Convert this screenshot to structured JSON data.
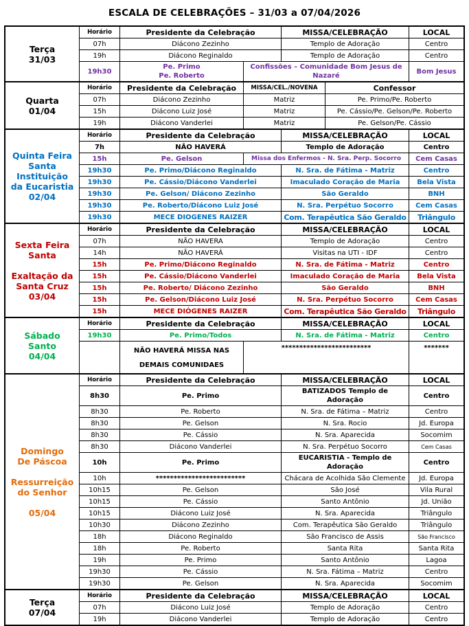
{
  "title": "ESCALA DE CELEBRAÇÕES – 31/03 a 07/04/2026",
  "colors": {
    "purple": "#7030A0",
    "blue": "#0070C0",
    "red": "#C00000",
    "green": "#00B050",
    "orange": "#E36C0A",
    "black": "#000000"
  },
  "sections": [
    {
      "day": [
        "Terça",
        "31/03"
      ],
      "header": {
        "h": "Horário",
        "p": "Presidente da Celebração",
        "m": "MISSA/CELEBRAÇÃO",
        "l": "LOCAL"
      },
      "rows": [
        {
          "h": "07h",
          "p": "Diácono Zezinho",
          "m": "Templo de Adoração",
          "l": "Centro"
        },
        {
          "h": "19h",
          "p": "Diácono Reginaldo",
          "m": "Templo de Adoração",
          "l": "Centro"
        },
        {
          "h": "19h30",
          "p": "Pe. Primo\nPe. Roberto",
          "m": "Confissões – Comunidade Bom Jesus de\nNazaré",
          "l": "Bom Jesus",
          "color": "#7030A0",
          "bold": true,
          "variant": "shift"
        }
      ]
    },
    {
      "day": [
        "Quarta",
        "01/04"
      ],
      "variant": "novena",
      "header": {
        "h": "Horário",
        "p": "Presidente da Celebração",
        "m": "MISSA/CEL./NOVENA",
        "l": "Confessor"
      },
      "rows": [
        {
          "h": "07h",
          "p": "Diácono Zezinho",
          "m": "Matriz",
          "l": "Pe. Primo/Pe. Roberto"
        },
        {
          "h": "15h",
          "p": "Diácono Luiz José",
          "m": "Matriz",
          "l": "Pe. Cássio/Pe. Gelson/Pe. Roberto"
        },
        {
          "h": "19h",
          "p": "Diácono Vanderlei",
          "m": "Matriz",
          "l": "Pe. Gelson/Pe. Cássio"
        }
      ]
    },
    {
      "day": [
        "Quinta Feira",
        "Santa",
        "Instituição",
        "da Eucaristia",
        "02/04"
      ],
      "color": "#0070C0",
      "header": {
        "h": "Horário",
        "p": "Presidente da Celebração",
        "m": "MISSA/CELEBRAÇÃO",
        "l": "LOCAL"
      },
      "rows": [
        {
          "h": "7h",
          "p": "NÃO HAVERÁ",
          "m": "Templo de Adoração",
          "l": "Centro",
          "bold": true
        },
        {
          "h": "15h",
          "p": "Pe. Gelson",
          "m": "Missa dos Enfermos - N. Sra. Perp. Socorro",
          "l": "Cem Casas",
          "color": "#7030A0",
          "bold": true,
          "variant": "shift",
          "m_small": true
        },
        {
          "h": "19h30",
          "p": "Pe. Primo/Diácono Reginaldo",
          "m": "N. Sra. de Fátima - Matriz",
          "l": "Centro",
          "color": "#0070C0",
          "bold": true
        },
        {
          "h": "19h30",
          "p": "Pe. Cássio/Diácono Vanderlei",
          "m": "Imaculado Coração de Maria",
          "l": "Bela Vista",
          "color": "#0070C0",
          "bold": true
        },
        {
          "h": "19h30",
          "p": "Pe. Gelson/ Diácono Zezinho",
          "m": "São Geraldo",
          "l": "BNH",
          "color": "#0070C0",
          "bold": true
        },
        {
          "h": "19h30",
          "p": "Pe. Roberto/Diácono Luiz José",
          "m": "N. Sra. Perpétuo Socorro",
          "l": "Cem Casas",
          "color": "#0070C0",
          "bold": true
        },
        {
          "h": "19h30",
          "p": "MECE DIOGENES RAIZER",
          "m": "Com. Terapêutica São Geraldo",
          "l": "Triângulo",
          "color": "#0070C0",
          "bold": true,
          "big": true
        }
      ]
    },
    {
      "day": [
        "Sexta Feira",
        "Santa",
        "",
        "Exaltação da",
        "Santa Cruz",
        "03/04"
      ],
      "color": "#C00000",
      "header": {
        "h": "Horário",
        "p": "Presidente da Celebração",
        "m": "MISSA/CELEBRAÇÃO",
        "l": "LOCAL"
      },
      "rows": [
        {
          "h": "07h",
          "p": "NÃO HAVERA",
          "m": "Templo de Adoração",
          "l": "Centro"
        },
        {
          "h": "14h",
          "p": "NÃO HAVERÁ",
          "m": "Visitas na UTI - IDF",
          "l": "Centro"
        },
        {
          "h": "15h",
          "p": "Pe. Primo/Diácono Reginaldo",
          "m": "N. Sra. de Fátima - Matriz",
          "l": "Centro",
          "color": "#C00000",
          "bold": true
        },
        {
          "h": "15h",
          "p": "Pe. Cássio/Diácono Vanderlei",
          "m": "Imaculado Coração de Maria",
          "l": "Bela Vista",
          "color": "#C00000",
          "bold": true
        },
        {
          "h": "15h",
          "p": "Pe. Roberto/ Diácono Zezinho",
          "m": "São Geraldo",
          "l": "BNH",
          "color": "#C00000",
          "bold": true
        },
        {
          "h": "15h",
          "p": "Pe. Gelson/Diácono Luiz José",
          "m": "N. Sra. Perpétuo Socorro",
          "l": "Cem Casas",
          "color": "#C00000",
          "bold": true
        },
        {
          "h": "15h",
          "p": "MECE DIÓGENES RAIZER",
          "m": "Com. Terapêutica São Geraldo",
          "l": "Triângulo",
          "color": "#C00000",
          "bold": true,
          "big": true
        }
      ]
    },
    {
      "day": [
        "Sábado",
        "Santo",
        "04/04"
      ],
      "color": "#00B050",
      "header": {
        "h": "Horário",
        "p": "Presidente da Celebração",
        "m": "MISSA/CELEBRAÇÃO",
        "l": "LOCAL"
      },
      "rows": [
        {
          "h": "19h30",
          "p": "Pe. Primo/Todos",
          "m": "N. Sra. de Fátima - Matriz",
          "l": "Centro",
          "color": "#00B050",
          "bold": true
        },
        {
          "h": "",
          "p": "NÃO HAVERÁ MISSA NAS\nDEMAIS COMUNIDAES",
          "m": "*************************",
          "l": "*******",
          "bold": true,
          "variant": "shift",
          "tall": true
        }
      ]
    },
    {
      "day": [
        "Domingo",
        "De Páscoa",
        "",
        "Ressurreição",
        "do Senhor",
        "",
        "05/04"
      ],
      "color": "#E36C0A",
      "header": {
        "h": "Horário",
        "p": "Presidente da Celebração",
        "m": "MISSA/CELEBRAÇÃO",
        "l": "LOCAL"
      },
      "rows": [
        {
          "h": "8h30",
          "p": "Pe. Primo",
          "m": "BATIZADOS Templo de Adoração",
          "l": "Centro",
          "bold": true
        },
        {
          "h": "8h30",
          "p": "Pe. Roberto",
          "m": "N. Sra. de Fátima – Matriz",
          "l": "Centro"
        },
        {
          "h": "8h30",
          "p": "Pe. Gelson",
          "m": "N. Sra. Rocio",
          "l": "Jd. Europa"
        },
        {
          "h": "8h30",
          "p": "Pe. Cássio",
          "m": "N. Sra. Aparecida",
          "l": "Socomim"
        },
        {
          "h": "8h30",
          "p": "Diácono Vanderlei",
          "m": "N. Sra. Perpétuo Socorro",
          "l": "Cem Casas",
          "l_small": true
        },
        {
          "h": "10h",
          "p": "Pe. Primo",
          "m": "EUCARISTIA - Templo de Adoração",
          "l": "Centro",
          "bold": true
        },
        {
          "h": "10h",
          "p": "*************************",
          "m": "Chácara de Acolhida São Clemente",
          "l": "Jd. Europa",
          "p_bold": true
        },
        {
          "h": "10h15",
          "p": "Pe. Gelson",
          "m": "São José",
          "l": "Vila Rural"
        },
        {
          "h": "10h15",
          "p": "Pe. Cássio",
          "m": "Santo Antônio",
          "l": "Jd. União"
        },
        {
          "h": "10h15",
          "p": "Diácono Luiz José",
          "m": "N. Sra. Aparecida",
          "l": "Triângulo"
        },
        {
          "h": "10h30",
          "p": "Diácono Zezinho",
          "m": "Com. Terapêutica São Geraldo",
          "l": "Triângulo"
        },
        {
          "h": "18h",
          "p": "Diácono Reginaldo",
          "m": "São Francisco de Assis",
          "l": "São Francisco",
          "l_small": true
        },
        {
          "h": "18h",
          "p": "Pe. Roberto",
          "m": "Santa Rita",
          "l": "Santa Rita"
        },
        {
          "h": "19h",
          "p": "Pe. Primo",
          "m": "Santo Antônio",
          "l": "Lagoa"
        },
        {
          "h": "19h30",
          "p": "Pe. Cássio",
          "m": "N. Sra. Fátima – Matriz",
          "l": "Centro"
        },
        {
          "h": "19h30",
          "p": "Pe. Gelson",
          "m": "N. Sra. Aparecida",
          "l": "Socomim"
        }
      ]
    },
    {
      "day": [
        "Terça",
        "07/04"
      ],
      "header": {
        "h": "Horário",
        "p": "Presidente da Celebração",
        "m": "MISSA/CELEBRAÇÃO",
        "l": "LOCAL"
      },
      "rows": [
        {
          "h": "07h",
          "p": "Diácono Luiz José",
          "m": "Templo de Adoração",
          "l": "Centro"
        },
        {
          "h": "19h",
          "p": "Diácono Vanderlei",
          "m": "Templo de Adoração",
          "l": "Centro"
        }
      ]
    }
  ]
}
